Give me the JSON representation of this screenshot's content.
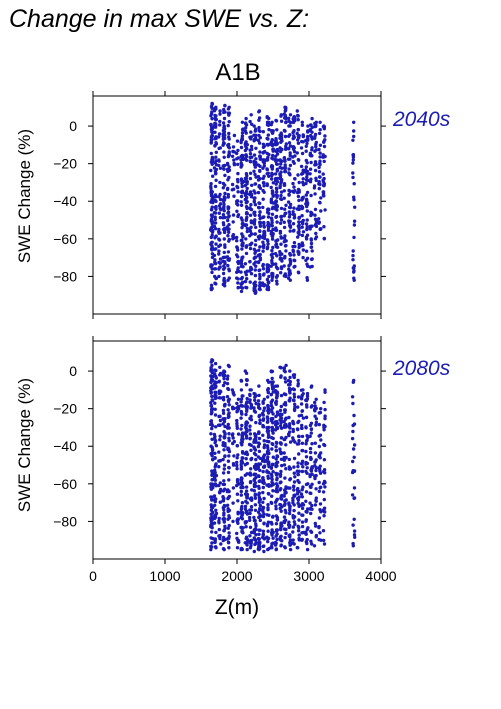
{
  "title": "Change in max SWE vs. Z:",
  "scenario": "A1B",
  "colors": {
    "points": "#1c1cb4",
    "panel_label": "#1c1cb4",
    "axes": "#000000"
  },
  "chart_data": [
    {
      "type": "scatter",
      "panel_label": "2040s",
      "xlabel": "",
      "ylabel": "SWE Change (%)",
      "xlim": [
        0,
        4000
      ],
      "ylim": [
        -100,
        16
      ],
      "xticks": [
        0,
        1000,
        2000,
        3000,
        4000
      ],
      "yticks": [
        0,
        -20,
        -40,
        -60,
        -80
      ],
      "xtick_labels_shown": false,
      "grid": false,
      "columns": [
        {
          "x": 1650,
          "y_max": 12,
          "y_min": -87,
          "n": 95
        },
        {
          "x": 1700,
          "y_max": 10,
          "y_min": -84,
          "n": 70
        },
        {
          "x": 1760,
          "y_max": 8,
          "y_min": -80,
          "n": 40
        },
        {
          "x": 1820,
          "y_max": 11,
          "y_min": -85,
          "n": 80
        },
        {
          "x": 1880,
          "y_max": 10,
          "y_min": -82,
          "n": 60
        },
        {
          "x": 1950,
          "y_max": -5,
          "y_min": -60,
          "n": 18
        },
        {
          "x": 2010,
          "y_max": -8,
          "y_min": -86,
          "n": 40
        },
        {
          "x": 2070,
          "y_max": 2,
          "y_min": -88,
          "n": 70
        },
        {
          "x": 2130,
          "y_max": 4,
          "y_min": -86,
          "n": 65
        },
        {
          "x": 2190,
          "y_max": 6,
          "y_min": -83,
          "n": 50
        },
        {
          "x": 2250,
          "y_max": 0,
          "y_min": -89,
          "n": 70
        },
        {
          "x": 2310,
          "y_max": 8,
          "y_min": -87,
          "n": 65
        },
        {
          "x": 2370,
          "y_max": -3,
          "y_min": -85,
          "n": 55
        },
        {
          "x": 2430,
          "y_max": 5,
          "y_min": -87,
          "n": 70
        },
        {
          "x": 2490,
          "y_max": 2,
          "y_min": -82,
          "n": 75
        },
        {
          "x": 2550,
          "y_max": 3,
          "y_min": -84,
          "n": 70
        },
        {
          "x": 2610,
          "y_max": 6,
          "y_min": -78,
          "n": 60
        },
        {
          "x": 2670,
          "y_max": 10,
          "y_min": -80,
          "n": 60
        },
        {
          "x": 2730,
          "y_max": 6,
          "y_min": -82,
          "n": 55
        },
        {
          "x": 2790,
          "y_max": 5,
          "y_min": -75,
          "n": 50
        },
        {
          "x": 2850,
          "y_max": 8,
          "y_min": -78,
          "n": 45
        },
        {
          "x": 2910,
          "y_max": 2,
          "y_min": -70,
          "n": 40
        },
        {
          "x": 2970,
          "y_max": 0,
          "y_min": -82,
          "n": 45
        },
        {
          "x": 3030,
          "y_max": 4,
          "y_min": -75,
          "n": 40
        },
        {
          "x": 3090,
          "y_max": 2,
          "y_min": -60,
          "n": 35
        },
        {
          "x": 3150,
          "y_max": 2,
          "y_min": -55,
          "n": 30
        },
        {
          "x": 3210,
          "y_max": 0,
          "y_min": -60,
          "n": 30
        },
        {
          "x": 3620,
          "y_max": 2,
          "y_min": -82,
          "n": 28
        }
      ]
    },
    {
      "type": "scatter",
      "panel_label": "2080s",
      "xlabel": "Z(m)",
      "ylabel": "SWE Change (%)",
      "xlim": [
        0,
        4000
      ],
      "ylim": [
        -100,
        16
      ],
      "xticks": [
        0,
        1000,
        2000,
        3000,
        4000
      ],
      "yticks": [
        0,
        -20,
        -40,
        -60,
        -80
      ],
      "xtick_labels_shown": true,
      "grid": false,
      "columns": [
        {
          "x": 1650,
          "y_max": 6,
          "y_min": -95,
          "n": 95
        },
        {
          "x": 1700,
          "y_max": 4,
          "y_min": -94,
          "n": 70
        },
        {
          "x": 1760,
          "y_max": 2,
          "y_min": -92,
          "n": 40
        },
        {
          "x": 1820,
          "y_max": 0,
          "y_min": -95,
          "n": 75
        },
        {
          "x": 1880,
          "y_max": 3,
          "y_min": -94,
          "n": 60
        },
        {
          "x": 1950,
          "y_max": -10,
          "y_min": -80,
          "n": 18
        },
        {
          "x": 2010,
          "y_max": -15,
          "y_min": -94,
          "n": 40
        },
        {
          "x": 2070,
          "y_max": -5,
          "y_min": -95,
          "n": 70
        },
        {
          "x": 2130,
          "y_max": 0,
          "y_min": -95,
          "n": 65
        },
        {
          "x": 2190,
          "y_max": -10,
          "y_min": -94,
          "n": 50
        },
        {
          "x": 2250,
          "y_max": -12,
          "y_min": -96,
          "n": 70
        },
        {
          "x": 2310,
          "y_max": -8,
          "y_min": -95,
          "n": 65
        },
        {
          "x": 2370,
          "y_max": -15,
          "y_min": -96,
          "n": 55
        },
        {
          "x": 2430,
          "y_max": -5,
          "y_min": -95,
          "n": 70
        },
        {
          "x": 2490,
          "y_max": 0,
          "y_min": -94,
          "n": 75
        },
        {
          "x": 2550,
          "y_max": -8,
          "y_min": -95,
          "n": 70
        },
        {
          "x": 2610,
          "y_max": 2,
          "y_min": -93,
          "n": 60
        },
        {
          "x": 2670,
          "y_max": 3,
          "y_min": -94,
          "n": 60
        },
        {
          "x": 2730,
          "y_max": 0,
          "y_min": -95,
          "n": 55
        },
        {
          "x": 2790,
          "y_max": -2,
          "y_min": -92,
          "n": 50
        },
        {
          "x": 2850,
          "y_max": -5,
          "y_min": -94,
          "n": 45
        },
        {
          "x": 2910,
          "y_max": -10,
          "y_min": -90,
          "n": 40
        },
        {
          "x": 2970,
          "y_max": -12,
          "y_min": -95,
          "n": 45
        },
        {
          "x": 3030,
          "y_max": -8,
          "y_min": -92,
          "n": 40
        },
        {
          "x": 3090,
          "y_max": -15,
          "y_min": -93,
          "n": 35
        },
        {
          "x": 3150,
          "y_max": -20,
          "y_min": -90,
          "n": 30
        },
        {
          "x": 3210,
          "y_max": -10,
          "y_min": -92,
          "n": 30
        },
        {
          "x": 3620,
          "y_max": -5,
          "y_min": -93,
          "n": 28
        }
      ]
    }
  ]
}
